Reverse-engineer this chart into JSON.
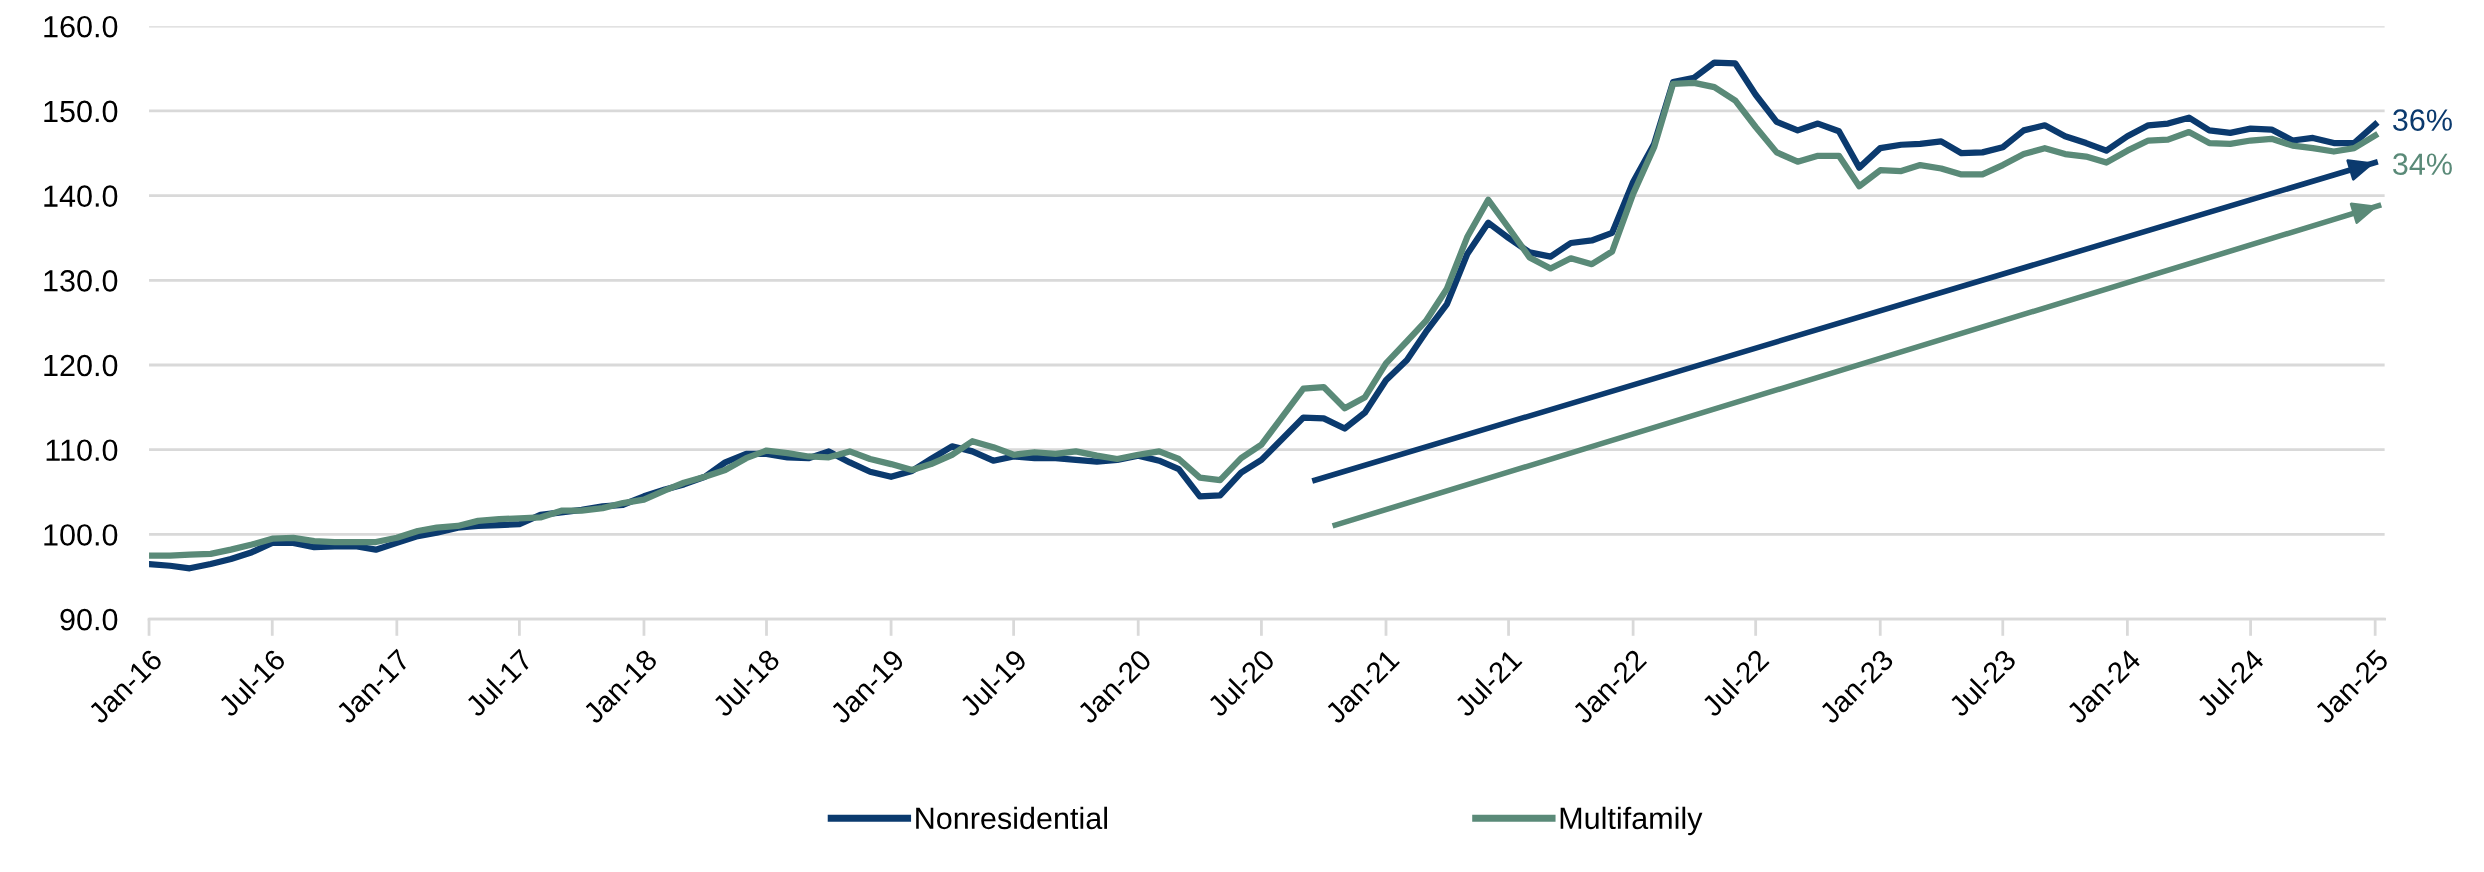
{
  "chart_data": {
    "type": "line",
    "x": [
      "2016-01",
      "2016-02",
      "2016-03",
      "2016-04",
      "2016-05",
      "2016-06",
      "2016-07",
      "2016-08",
      "2016-09",
      "2016-10",
      "2016-11",
      "2016-12",
      "2017-01",
      "2017-02",
      "2017-03",
      "2017-04",
      "2017-05",
      "2017-06",
      "2017-07",
      "2017-08",
      "2017-09",
      "2017-10",
      "2017-11",
      "2017-12",
      "2018-01",
      "2018-02",
      "2018-03",
      "2018-04",
      "2018-05",
      "2018-06",
      "2018-07",
      "2018-08",
      "2018-09",
      "2018-10",
      "2018-11",
      "2018-12",
      "2019-01",
      "2019-02",
      "2019-03",
      "2019-04",
      "2019-05",
      "2019-06",
      "2019-07",
      "2019-08",
      "2019-09",
      "2019-10",
      "2019-11",
      "2019-12",
      "2020-01",
      "2020-02",
      "2020-03",
      "2020-04",
      "2020-05",
      "2020-06",
      "2020-07",
      "2020-08",
      "2020-09",
      "2020-10",
      "2020-11",
      "2020-12",
      "2021-01",
      "2021-02",
      "2021-03",
      "2021-04",
      "2021-05",
      "2021-06",
      "2021-07",
      "2021-08",
      "2021-09",
      "2021-10",
      "2021-11",
      "2021-12",
      "2022-01",
      "2022-02",
      "2022-03",
      "2022-04",
      "2022-05",
      "2022-06",
      "2022-07",
      "2022-08",
      "2022-09",
      "2022-10",
      "2022-11",
      "2022-12",
      "2023-01",
      "2023-02",
      "2023-03",
      "2023-04",
      "2023-05",
      "2023-06",
      "2023-07",
      "2023-08",
      "2023-09",
      "2023-10",
      "2023-11",
      "2023-12",
      "2024-01",
      "2024-02",
      "2024-03",
      "2024-04",
      "2024-05",
      "2024-06",
      "2024-07",
      "2024-08",
      "2024-09",
      "2024-10",
      "2024-11",
      "2024-12",
      "2025-01"
    ],
    "series": [
      {
        "name": "Nonresidential",
        "color": "#0b3a6e",
        "values": [
          96.5,
          96.3,
          96.0,
          96.5,
          97.1,
          97.9,
          99.0,
          99.0,
          98.5,
          98.6,
          98.6,
          98.2,
          99.0,
          99.8,
          100.2,
          100.8,
          101.0,
          101.1,
          101.2,
          102.3,
          102.6,
          102.9,
          103.3,
          103.5,
          104.5,
          105.3,
          105.9,
          106.8,
          108.5,
          109.5,
          109.5,
          109.1,
          109.0,
          109.8,
          108.5,
          107.4,
          106.8,
          107.5,
          108.9,
          110.4,
          109.8,
          108.7,
          109.2,
          109.0,
          109.0,
          108.8,
          108.6,
          108.8,
          109.3,
          108.7,
          107.7,
          104.5,
          104.6,
          107.3,
          108.8,
          111.3,
          113.8,
          113.7,
          112.5,
          114.4,
          118.2,
          120.6,
          123.9,
          127.2,
          133.1,
          136.8,
          135.0,
          133.3,
          132.8,
          134.4,
          134.7,
          135.6,
          141.6,
          146.1,
          153.4,
          153.9,
          155.7,
          155.6,
          151.9,
          148.7,
          147.7,
          148.5,
          147.6,
          143.3,
          145.6,
          146.0,
          146.1,
          146.4,
          145.0,
          145.1,
          145.7,
          147.7,
          148.3,
          147.0,
          146.2,
          145.3,
          147.0,
          148.3,
          148.5,
          149.2,
          147.7,
          147.4,
          147.9,
          147.8,
          146.5,
          146.8,
          146.2,
          146.2,
          148.4
        ]
      },
      {
        "name": "Multifamily",
        "color": "#5a8a78",
        "values": [
          97.5,
          97.5,
          97.6,
          97.7,
          98.2,
          98.8,
          99.5,
          99.6,
          99.2,
          99.1,
          99.1,
          99.1,
          99.6,
          100.4,
          100.8,
          101.0,
          101.6,
          101.8,
          101.9,
          102.0,
          102.8,
          102.8,
          103.1,
          103.7,
          104.1,
          105.2,
          106.1,
          106.8,
          107.6,
          109.0,
          109.9,
          109.6,
          109.2,
          109.1,
          109.8,
          108.9,
          108.3,
          107.6,
          108.3,
          109.4,
          111.0,
          110.3,
          109.4,
          109.7,
          109.5,
          109.8,
          109.3,
          108.9,
          109.4,
          109.8,
          108.9,
          106.7,
          106.4,
          109.0,
          110.6,
          113.9,
          117.2,
          117.4,
          114.9,
          116.2,
          120.2,
          122.8,
          125.2,
          129.0,
          135.1,
          139.5,
          136.2,
          132.7,
          131.4,
          132.6,
          131.9,
          133.4,
          140.2,
          145.7,
          153.2,
          153.3,
          152.8,
          151.2,
          148.1,
          145.1,
          144.0,
          144.7,
          144.7,
          141.1,
          143.0,
          142.9,
          143.6,
          143.2,
          142.5,
          142.5,
          143.6,
          144.9,
          145.6,
          144.9,
          144.6,
          143.9,
          145.3,
          146.5,
          146.6,
          147.5,
          146.2,
          146.1,
          146.5,
          146.7,
          145.9,
          145.6,
          145.2,
          145.6,
          147.1
        ]
      },
      {
        "type": "line",
        "color": "#0b3a6e",
        "x": [
          "2020-09-18",
          "2025-01-01"
        ],
        "values": [
          106.4,
          143.9
        ]
      },
      {
        "type": "line",
        "color": "#5a8a78",
        "x": [
          "2020-10-18",
          "2025-01-06"
        ],
        "values": [
          101.1,
          138.8
        ]
      }
    ],
    "annotations": [
      {
        "text": "36%",
        "x": "2025-01",
        "y": 148.6
      },
      {
        "text": "34%",
        "x": "2025-01",
        "y": 143.4
      }
    ],
    "xlim": [
      "2016-01",
      "2025-01-15"
    ],
    "xticks": [
      {
        "value": "2016-01",
        "label": "Jan-16"
      },
      {
        "value": "2016-07",
        "label": "Jul-16"
      },
      {
        "value": "2017-01",
        "label": "Jan-17"
      },
      {
        "value": "2017-07",
        "label": "Jul-17"
      },
      {
        "value": "2018-01",
        "label": "Jan-18"
      },
      {
        "value": "2018-07",
        "label": "Jul-18"
      },
      {
        "value": "2019-01",
        "label": "Jan-19"
      },
      {
        "value": "2019-07",
        "label": "Jul-19"
      },
      {
        "value": "2020-01",
        "label": "Jan-20"
      },
      {
        "value": "2020-07",
        "label": "Jul-20"
      },
      {
        "value": "2021-01",
        "label": "Jan-21"
      },
      {
        "value": "2021-07",
        "label": "Jul-21"
      },
      {
        "value": "2022-01",
        "label": "Jan-22"
      },
      {
        "value": "2022-07",
        "label": "Jul-22"
      },
      {
        "value": "2023-01",
        "label": "Jan-23"
      },
      {
        "value": "2023-07",
        "label": "Jul-23"
      },
      {
        "value": "2024-01",
        "label": "Jan-24"
      },
      {
        "value": "2024-07",
        "label": "Jul-24"
      },
      {
        "value": "2025-01",
        "label": "Jan-25"
      }
    ],
    "ylim": [
      90,
      160
    ],
    "yticks": [
      {
        "value": 90,
        "label": "90.0"
      },
      {
        "value": 100,
        "label": "100.0"
      },
      {
        "value": 110,
        "label": "110.0"
      },
      {
        "value": 120,
        "label": "120.0"
      },
      {
        "value": 130,
        "label": "130.0"
      },
      {
        "value": 140,
        "label": "140.0"
      },
      {
        "value": 150,
        "label": "150.0"
      },
      {
        "value": 160,
        "label": "160.0"
      }
    ],
    "grid": "y",
    "legend": "bottom",
    "marker": "none",
    "line_style": "solid"
  }
}
